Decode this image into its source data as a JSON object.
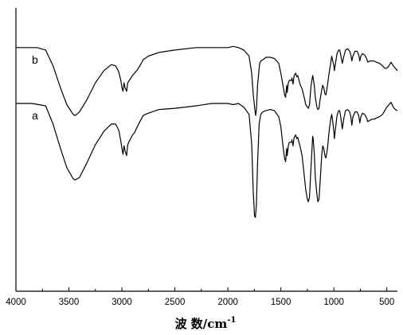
{
  "chart_data": {
    "type": "line",
    "xlabel": "波 数/cm",
    "xlabel_superscript": "-1",
    "ylabel": "",
    "xlim": [
      4000,
      400
    ],
    "x_reversed": true,
    "grid": false,
    "legend": "none",
    "xticks": [
      4000,
      3500,
      3000,
      2500,
      2000,
      1500,
      1000,
      500
    ],
    "xtick_labels": [
      "4000",
      "3500",
      "3000",
      "2500",
      "2000",
      "1500",
      "1000",
      "500"
    ],
    "ylim": [
      0,
      1
    ],
    "series": [
      {
        "name": "b",
        "color": "#000000",
        "points": [
          [
            4000,
            0.935
          ],
          [
            3800,
            0.935
          ],
          [
            3720,
            0.925
          ],
          [
            3650,
            0.86
          ],
          [
            3580,
            0.77
          ],
          [
            3520,
            0.7
          ],
          [
            3460,
            0.66
          ],
          [
            3440,
            0.655
          ],
          [
            3400,
            0.67
          ],
          [
            3330,
            0.72
          ],
          [
            3250,
            0.79
          ],
          [
            3170,
            0.84
          ],
          [
            3100,
            0.865
          ],
          [
            3060,
            0.86
          ],
          [
            3030,
            0.835
          ],
          [
            3010,
            0.8
          ],
          [
            3000,
            0.77
          ],
          [
            2990,
            0.755
          ],
          [
            2980,
            0.79
          ],
          [
            2970,
            0.77
          ],
          [
            2955,
            0.755
          ],
          [
            2945,
            0.79
          ],
          [
            2930,
            0.8
          ],
          [
            2900,
            0.82
          ],
          [
            2880,
            0.83
          ],
          [
            2860,
            0.84
          ],
          [
            2830,
            0.86
          ],
          [
            2800,
            0.885
          ],
          [
            2750,
            0.9
          ],
          [
            2650,
            0.915
          ],
          [
            2500,
            0.925
          ],
          [
            2300,
            0.935
          ],
          [
            2100,
            0.935
          ],
          [
            2000,
            0.935
          ],
          [
            1950,
            0.94
          ],
          [
            1900,
            0.935
          ],
          [
            1850,
            0.925
          ],
          [
            1800,
            0.9
          ],
          [
            1775,
            0.83
          ],
          [
            1760,
            0.74
          ],
          [
            1745,
            0.68
          ],
          [
            1738,
            0.655
          ],
          [
            1730,
            0.68
          ],
          [
            1720,
            0.78
          ],
          [
            1700,
            0.87
          ],
          [
            1690,
            0.88
          ],
          [
            1670,
            0.885
          ],
          [
            1640,
            0.895
          ],
          [
            1600,
            0.895
          ],
          [
            1560,
            0.89
          ],
          [
            1520,
            0.87
          ],
          [
            1500,
            0.83
          ],
          [
            1480,
            0.78
          ],
          [
            1465,
            0.74
          ],
          [
            1455,
            0.73
          ],
          [
            1445,
            0.78
          ],
          [
            1440,
            0.75
          ],
          [
            1430,
            0.79
          ],
          [
            1420,
            0.8
          ],
          [
            1400,
            0.8
          ],
          [
            1395,
            0.81
          ],
          [
            1385,
            0.785
          ],
          [
            1375,
            0.82
          ],
          [
            1360,
            0.83
          ],
          [
            1350,
            0.815
          ],
          [
            1340,
            0.82
          ],
          [
            1320,
            0.785
          ],
          [
            1300,
            0.765
          ],
          [
            1280,
            0.73
          ],
          [
            1265,
            0.7
          ],
          [
            1250,
            0.69
          ],
          [
            1240,
            0.685
          ],
          [
            1230,
            0.7
          ],
          [
            1215,
            0.78
          ],
          [
            1200,
            0.82
          ],
          [
            1195,
            0.81
          ],
          [
            1185,
            0.78
          ],
          [
            1175,
            0.73
          ],
          [
            1160,
            0.69
          ],
          [
            1150,
            0.68
          ],
          [
            1140,
            0.685
          ],
          [
            1130,
            0.72
          ],
          [
            1115,
            0.76
          ],
          [
            1105,
            0.78
          ],
          [
            1095,
            0.77
          ],
          [
            1085,
            0.745
          ],
          [
            1075,
            0.74
          ],
          [
            1060,
            0.78
          ],
          [
            1045,
            0.83
          ],
          [
            1030,
            0.87
          ],
          [
            1020,
            0.9
          ],
          [
            1010,
            0.88
          ],
          [
            1000,
            0.86
          ],
          [
            995,
            0.84
          ],
          [
            985,
            0.87
          ],
          [
            970,
            0.91
          ],
          [
            955,
            0.925
          ],
          [
            945,
            0.925
          ],
          [
            935,
            0.905
          ],
          [
            920,
            0.87
          ],
          [
            905,
            0.9
          ],
          [
            890,
            0.925
          ],
          [
            870,
            0.93
          ],
          [
            850,
            0.92
          ],
          [
            840,
            0.905
          ],
          [
            830,
            0.88
          ],
          [
            820,
            0.9
          ],
          [
            800,
            0.92
          ],
          [
            780,
            0.92
          ],
          [
            765,
            0.905
          ],
          [
            755,
            0.88
          ],
          [
            745,
            0.9
          ],
          [
            730,
            0.91
          ],
          [
            710,
            0.905
          ],
          [
            690,
            0.89
          ],
          [
            680,
            0.875
          ],
          [
            660,
            0.88
          ],
          [
            640,
            0.88
          ],
          [
            620,
            0.88
          ],
          [
            600,
            0.875
          ],
          [
            570,
            0.87
          ],
          [
            540,
            0.86
          ],
          [
            520,
            0.85
          ],
          [
            500,
            0.85
          ],
          [
            480,
            0.86
          ],
          [
            460,
            0.875
          ],
          [
            440,
            0.86
          ],
          [
            420,
            0.85
          ],
          [
            400,
            0.84
          ]
        ]
      },
      {
        "name": "a",
        "color": "#000000",
        "points": [
          [
            4000,
            0.705
          ],
          [
            3850,
            0.705
          ],
          [
            3720,
            0.695
          ],
          [
            3650,
            0.62
          ],
          [
            3580,
            0.52
          ],
          [
            3520,
            0.44
          ],
          [
            3460,
            0.395
          ],
          [
            3440,
            0.39
          ],
          [
            3400,
            0.4
          ],
          [
            3330,
            0.46
          ],
          [
            3250,
            0.535
          ],
          [
            3170,
            0.59
          ],
          [
            3100,
            0.62
          ],
          [
            3060,
            0.62
          ],
          [
            3030,
            0.595
          ],
          [
            3010,
            0.55
          ],
          [
            3000,
            0.52
          ],
          [
            2990,
            0.495
          ],
          [
            2980,
            0.53
          ],
          [
            2970,
            0.51
          ],
          [
            2955,
            0.49
          ],
          [
            2945,
            0.535
          ],
          [
            2930,
            0.55
          ],
          [
            2900,
            0.575
          ],
          [
            2880,
            0.585
          ],
          [
            2860,
            0.605
          ],
          [
            2830,
            0.63
          ],
          [
            2800,
            0.655
          ],
          [
            2750,
            0.665
          ],
          [
            2650,
            0.68
          ],
          [
            2500,
            0.685
          ],
          [
            2300,
            0.695
          ],
          [
            2150,
            0.705
          ],
          [
            2000,
            0.705
          ],
          [
            1950,
            0.7
          ],
          [
            1900,
            0.705
          ],
          [
            1850,
            0.69
          ],
          [
            1800,
            0.66
          ],
          [
            1775,
            0.54
          ],
          [
            1760,
            0.34
          ],
          [
            1748,
            0.24
          ],
          [
            1740,
            0.235
          ],
          [
            1730,
            0.29
          ],
          [
            1720,
            0.46
          ],
          [
            1705,
            0.62
          ],
          [
            1690,
            0.66
          ],
          [
            1670,
            0.67
          ],
          [
            1640,
            0.675
          ],
          [
            1600,
            0.68
          ],
          [
            1560,
            0.675
          ],
          [
            1520,
            0.65
          ],
          [
            1500,
            0.61
          ],
          [
            1480,
            0.53
          ],
          [
            1465,
            0.48
          ],
          [
            1455,
            0.465
          ],
          [
            1445,
            0.52
          ],
          [
            1440,
            0.49
          ],
          [
            1430,
            0.53
          ],
          [
            1420,
            0.545
          ],
          [
            1400,
            0.545
          ],
          [
            1395,
            0.555
          ],
          [
            1385,
            0.53
          ],
          [
            1375,
            0.565
          ],
          [
            1360,
            0.575
          ],
          [
            1350,
            0.56
          ],
          [
            1340,
            0.565
          ],
          [
            1320,
            0.53
          ],
          [
            1300,
            0.49
          ],
          [
            1280,
            0.41
          ],
          [
            1265,
            0.35
          ],
          [
            1250,
            0.31
          ],
          [
            1240,
            0.3
          ],
          [
            1230,
            0.32
          ],
          [
            1215,
            0.45
          ],
          [
            1200,
            0.57
          ],
          [
            1195,
            0.56
          ],
          [
            1185,
            0.5
          ],
          [
            1175,
            0.4
          ],
          [
            1160,
            0.33
          ],
          [
            1150,
            0.3
          ],
          [
            1140,
            0.31
          ],
          [
            1130,
            0.38
          ],
          [
            1115,
            0.49
          ],
          [
            1105,
            0.53
          ],
          [
            1095,
            0.52
          ],
          [
            1085,
            0.49
          ],
          [
            1075,
            0.48
          ],
          [
            1060,
            0.52
          ],
          [
            1045,
            0.59
          ],
          [
            1030,
            0.64
          ],
          [
            1020,
            0.66
          ],
          [
            1010,
            0.63
          ],
          [
            1000,
            0.59
          ],
          [
            995,
            0.56
          ],
          [
            985,
            0.6
          ],
          [
            970,
            0.655
          ],
          [
            955,
            0.675
          ],
          [
            945,
            0.675
          ],
          [
            935,
            0.65
          ],
          [
            920,
            0.6
          ],
          [
            905,
            0.645
          ],
          [
            890,
            0.675
          ],
          [
            870,
            0.68
          ],
          [
            850,
            0.67
          ],
          [
            840,
            0.65
          ],
          [
            830,
            0.615
          ],
          [
            820,
            0.65
          ],
          [
            800,
            0.67
          ],
          [
            780,
            0.67
          ],
          [
            765,
            0.655
          ],
          [
            755,
            0.625
          ],
          [
            745,
            0.65
          ],
          [
            730,
            0.665
          ],
          [
            710,
            0.66
          ],
          [
            690,
            0.645
          ],
          [
            680,
            0.63
          ],
          [
            660,
            0.635
          ],
          [
            640,
            0.64
          ],
          [
            620,
            0.64
          ],
          [
            600,
            0.645
          ],
          [
            570,
            0.65
          ],
          [
            540,
            0.66
          ],
          [
            520,
            0.675
          ],
          [
            500,
            0.69
          ],
          [
            480,
            0.7
          ],
          [
            460,
            0.71
          ],
          [
            440,
            0.69
          ],
          [
            420,
            0.68
          ],
          [
            400,
            0.675
          ]
        ]
      }
    ]
  }
}
